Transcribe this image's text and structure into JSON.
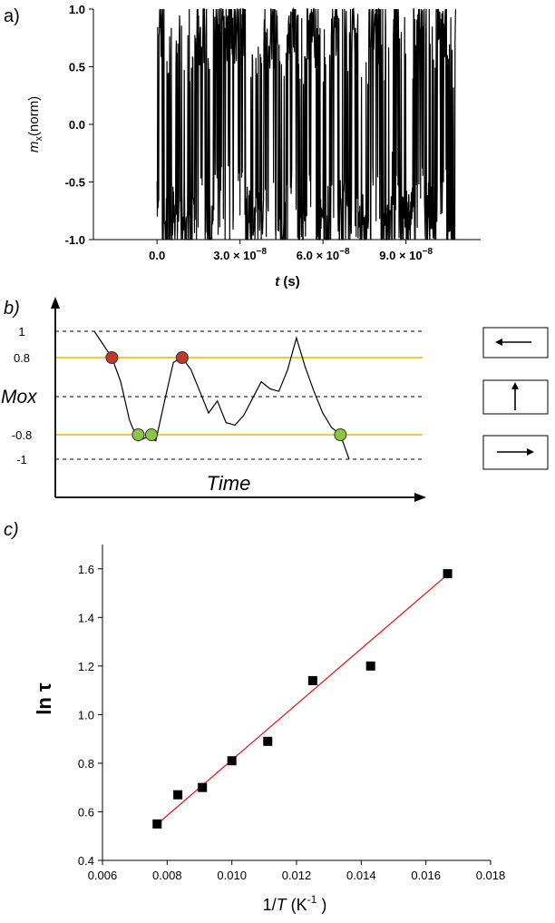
{
  "panel_labels": {
    "a": "a)",
    "b": "b)",
    "c": "c)"
  },
  "chart_data": [
    {
      "type": "line",
      "title": "",
      "xlabel_symbol": "t",
      "xlabel_unit": "(s)",
      "ylabel_symbol": "m",
      "ylabel_sub": "x",
      "ylabel_rest": "(norm)",
      "xlim": [
        -2.3e-08,
        1.17e-07
      ],
      "ylim": [
        -1.0,
        1.0
      ],
      "yticks": [
        "1.0",
        "0.5",
        "0.0",
        "-0.5",
        "-1.0"
      ],
      "ytick_values": [
        1.0,
        0.5,
        0.0,
        -0.5,
        -1.0
      ],
      "xticks": [
        {
          "value": 0,
          "mantissa": "0.0",
          "exponent": ""
        },
        {
          "value": 3e-08,
          "mantissa": "3.0 × 10",
          "exponent": "−8"
        },
        {
          "value": 6e-08,
          "mantissa": "6.0 × 10",
          "exponent": "−8"
        },
        {
          "value": 9e-08,
          "mantissa": "9.0 × 10",
          "exponent": "−8"
        }
      ],
      "series": [
        {
          "name": "mx",
          "color": "#000000",
          "x": [
            0,
            4e-09,
            8e-09,
            1.2e-08,
            1.6e-08,
            1.9e-08,
            2.3e-08,
            2.7e-08,
            3e-08,
            3.4e-08,
            3.8e-08,
            4.2e-08,
            4.5e-08,
            4.9e-08,
            5.2e-08,
            5.6e-08,
            6e-08,
            6.4e-08,
            6.8e-08,
            7.1e-08,
            7.5e-08,
            7.9e-08,
            8.3e-08,
            8.7e-08,
            9.1e-08,
            9.5e-08,
            9.9e-08,
            1.03e-07,
            1.06e-07,
            1.08e-07
          ],
          "y": [
            1.0,
            -0.9,
            0.1,
            -1.0,
            0.95,
            -0.8,
            0.9,
            1.0,
            0.85,
            -1.0,
            -0.4,
            0.6,
            -0.9,
            0.7,
            -0.9,
            0.95,
            -1.0,
            0.4,
            -0.95,
            0.9,
            -0.8,
            0.95,
            -0.7,
            0.3,
            -1.0,
            0.98,
            -0.8,
            0.9,
            -0.9,
            0.3
          ]
        }
      ]
    },
    {
      "type": "line",
      "title": "",
      "xlabel": "Time",
      "ylabel": "Mox",
      "ylevels": [
        {
          "label": "1",
          "value": 1.0
        },
        {
          "label": "0.8",
          "value": 0.8
        },
        {
          "label": "-0.8",
          "value": -0.8
        },
        {
          "label": "-1",
          "value": -1.0
        }
      ],
      "threshold_color": "#f0c020",
      "curve_x": [
        0,
        0.03,
        0.06,
        0.09,
        0.12,
        0.15,
        0.18,
        0.21,
        0.24,
        0.27,
        0.3,
        0.33,
        0.36,
        0.39,
        0.42,
        0.45,
        0.48,
        0.51,
        0.54,
        0.57,
        0.6,
        0.63,
        0.66,
        0.69,
        0.72,
        0.75,
        0.78,
        0.81,
        0.84,
        0.87
      ],
      "curve_y": [
        1.0,
        0.9,
        0.8,
        0.3,
        -0.5,
        -0.85,
        -0.82,
        -0.85,
        -0.1,
        0.7,
        0.8,
        0.55,
        0.1,
        -0.35,
        -0.1,
        -0.55,
        -0.6,
        -0.4,
        -0.05,
        0.3,
        0.15,
        0.1,
        0.55,
        0.95,
        0.6,
        0.1,
        -0.35,
        -0.65,
        -0.8,
        -1.0
      ],
      "markers": [
        {
          "x": 0.06,
          "y": 0.8,
          "color": "#c0392b"
        },
        {
          "x": 0.3,
          "y": 0.8,
          "color": "#c0392b"
        },
        {
          "x": 0.15,
          "y": -0.8,
          "color": "#8dc63f"
        },
        {
          "x": 0.195,
          "y": -0.8,
          "color": "#8dc63f"
        },
        {
          "x": 0.84,
          "y": -0.8,
          "color": "#8dc63f"
        }
      ],
      "state_icons": [
        "arrow-left-icon",
        "arrow-up-icon",
        "arrow-right-icon"
      ]
    },
    {
      "type": "scatter",
      "title": "",
      "xlabel_prefix": "1/",
      "xlabel_symbol": "T",
      "xlabel_unit": " (K",
      "xlabel_exp": "-1",
      "xlabel_close": " )",
      "ylabel": "ln τ",
      "xlim": [
        0.006,
        0.018
      ],
      "ylim": [
        0.4,
        1.7
      ],
      "xticks": [
        "0.006",
        "0.008",
        "0.010",
        "0.012",
        "0.014",
        "0.016",
        "0.018"
      ],
      "xtick_values": [
        0.006,
        0.008,
        0.01,
        0.012,
        0.014,
        0.016,
        0.018
      ],
      "yticks": [
        "0.4",
        "0.6",
        "0.8",
        "1.0",
        "1.2",
        "1.4",
        "1.6"
      ],
      "ytick_values": [
        0.4,
        0.6,
        0.8,
        1.0,
        1.2,
        1.4,
        1.6
      ],
      "series": [
        {
          "name": "data",
          "color": "#000000",
          "x": [
            0.00769,
            0.00833,
            0.00909,
            0.01,
            0.01111,
            0.0125,
            0.01429,
            0.01667
          ],
          "y": [
            0.55,
            0.67,
            0.7,
            0.81,
            0.89,
            1.14,
            1.2,
            1.58
          ]
        },
        {
          "name": "fit",
          "color": "#e02020",
          "x": [
            0.0077,
            0.0167
          ],
          "y": [
            0.55,
            1.58
          ]
        }
      ]
    }
  ]
}
